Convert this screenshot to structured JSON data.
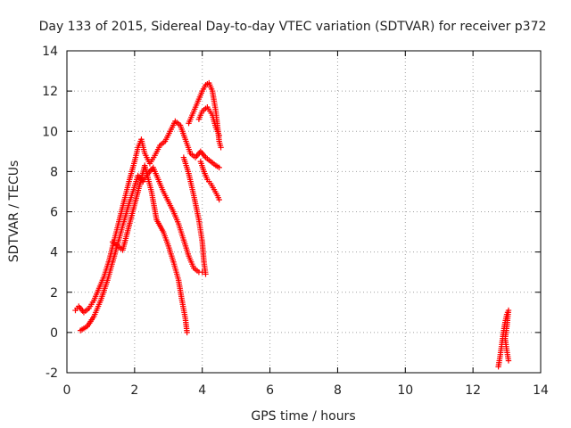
{
  "chart_data": {
    "type": "scatter",
    "title": "Day 133 of 2015, Sidereal Day-to-day VTEC variation (SDTVAR) for receiver p372",
    "xlabel": "GPS time / hours",
    "ylabel": "SDTVAR / TECUs",
    "xlim": [
      0,
      14
    ],
    "ylim": [
      -2,
      14
    ],
    "xticks": [
      "0",
      "2",
      "4",
      "6",
      "8",
      "10",
      "12",
      "14"
    ],
    "yticks": [
      "-2",
      "0",
      "2",
      "4",
      "6",
      "8",
      "10",
      "12",
      "14"
    ],
    "grid": true,
    "marker": "plus",
    "color": "#ff0000",
    "series": [
      {
        "values": [
          [
            0.25,
            1.1
          ],
          [
            0.35,
            1.3
          ],
          [
            0.5,
            1.0
          ],
          [
            0.65,
            1.2
          ],
          [
            0.8,
            1.6
          ],
          [
            0.95,
            2.2
          ],
          [
            1.1,
            2.8
          ],
          [
            1.25,
            3.6
          ],
          [
            1.4,
            4.6
          ],
          [
            1.55,
            5.6
          ],
          [
            1.7,
            6.6
          ],
          [
            1.85,
            7.6
          ],
          [
            2.0,
            8.5
          ],
          [
            2.1,
            9.2
          ],
          [
            2.2,
            9.6
          ],
          [
            2.3,
            8.9
          ],
          [
            2.45,
            8.4
          ],
          [
            2.6,
            8.8
          ],
          [
            2.75,
            9.3
          ],
          [
            2.9,
            9.5
          ],
          [
            3.05,
            10.0
          ],
          [
            3.2,
            10.5
          ],
          [
            3.35,
            10.3
          ],
          [
            3.5,
            9.6
          ],
          [
            3.65,
            8.9
          ],
          [
            3.8,
            8.7
          ],
          [
            3.95,
            9.0
          ],
          [
            4.1,
            8.7
          ],
          [
            4.25,
            8.5
          ],
          [
            4.4,
            8.3
          ],
          [
            4.5,
            8.2
          ]
        ]
      },
      {
        "values": [
          [
            0.4,
            0.1
          ],
          [
            0.6,
            0.3
          ],
          [
            0.8,
            0.8
          ],
          [
            1.0,
            1.6
          ],
          [
            1.2,
            2.6
          ],
          [
            1.4,
            3.8
          ],
          [
            1.6,
            5.0
          ],
          [
            1.8,
            6.2
          ],
          [
            1.95,
            7.0
          ],
          [
            2.1,
            7.8
          ],
          [
            2.25,
            7.5
          ],
          [
            2.4,
            7.9
          ],
          [
            2.55,
            8.2
          ],
          [
            2.7,
            7.6
          ],
          [
            2.85,
            7.0
          ],
          [
            3.0,
            6.5
          ],
          [
            3.15,
            6.0
          ],
          [
            3.3,
            5.4
          ],
          [
            3.45,
            4.6
          ],
          [
            3.6,
            3.8
          ],
          [
            3.75,
            3.2
          ],
          [
            3.9,
            3.0
          ],
          [
            4.0,
            3.0
          ]
        ]
      },
      {
        "values": [
          [
            1.35,
            4.5
          ],
          [
            1.5,
            4.3
          ],
          [
            1.65,
            4.1
          ],
          [
            2.3,
            8.3
          ],
          [
            2.5,
            7.0
          ],
          [
            2.65,
            5.6
          ],
          [
            2.85,
            5.0
          ],
          [
            3.0,
            4.3
          ],
          [
            3.15,
            3.5
          ],
          [
            3.3,
            2.6
          ],
          [
            3.4,
            1.6
          ],
          [
            3.5,
            0.7
          ],
          [
            3.55,
            0.0
          ]
        ]
      },
      {
        "values": [
          [
            3.45,
            8.7
          ],
          [
            3.6,
            7.9
          ],
          [
            3.75,
            6.8
          ],
          [
            3.9,
            5.6
          ],
          [
            4.0,
            4.5
          ],
          [
            4.05,
            3.5
          ],
          [
            4.1,
            2.9
          ]
        ]
      },
      {
        "values": [
          [
            3.6,
            10.4
          ],
          [
            3.75,
            11.0
          ],
          [
            3.9,
            11.6
          ],
          [
            4.0,
            12.0
          ],
          [
            4.1,
            12.3
          ],
          [
            4.2,
            12.4
          ],
          [
            4.3,
            12.0
          ],
          [
            4.4,
            11.0
          ],
          [
            4.5,
            9.5
          ],
          [
            4.55,
            9.2
          ]
        ]
      },
      {
        "values": [
          [
            3.9,
            10.6
          ],
          [
            4.0,
            11.0
          ],
          [
            4.15,
            11.2
          ],
          [
            4.3,
            10.8
          ],
          [
            4.4,
            10.2
          ],
          [
            4.5,
            9.8
          ]
        ]
      },
      {
        "values": [
          [
            3.95,
            8.5
          ],
          [
            4.05,
            8.0
          ],
          [
            4.15,
            7.6
          ],
          [
            4.25,
            7.4
          ],
          [
            4.35,
            7.1
          ],
          [
            4.45,
            6.8
          ],
          [
            4.5,
            6.6
          ]
        ]
      },
      {
        "values": [
          [
            12.75,
            -1.7
          ],
          [
            12.8,
            -1.2
          ],
          [
            12.85,
            -0.6
          ],
          [
            12.9,
            0.0
          ],
          [
            12.95,
            0.5
          ],
          [
            13.0,
            0.9
          ],
          [
            13.05,
            1.1
          ],
          [
            13.0,
            0.3
          ],
          [
            12.95,
            -0.3
          ],
          [
            13.0,
            -0.9
          ],
          [
            13.05,
            -1.4
          ]
        ]
      }
    ]
  }
}
